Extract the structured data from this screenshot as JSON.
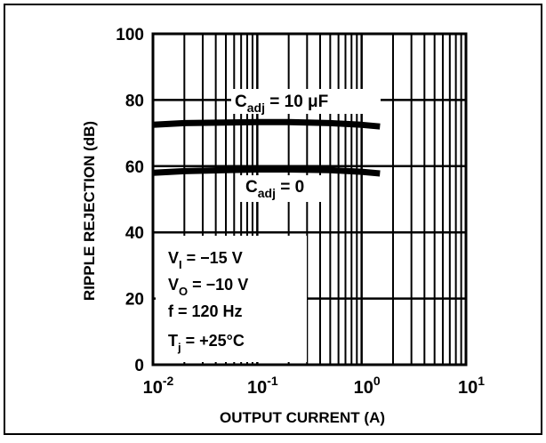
{
  "chart_data": {
    "type": "line",
    "x_scale": "log",
    "xlabel": "OUTPUT CURRENT (A)",
    "ylabel": "RIPPLE REJECTION (dB)",
    "xlim": [
      0.01,
      10
    ],
    "ylim": [
      0,
      100
    ],
    "grid": true,
    "x_ticks": [
      {
        "base": "10",
        "exp": "-2"
      },
      {
        "base": "10",
        "exp": "-1"
      },
      {
        "base": "10",
        "exp": "0"
      },
      {
        "base": "10",
        "exp": "1"
      }
    ],
    "y_ticks": [
      "0",
      "20",
      "40",
      "60",
      "80",
      "100"
    ],
    "series": [
      {
        "name": "Cadj = 10 µF",
        "label": {
          "main": "C",
          "sub": "adj",
          "rest": " = 10 μF"
        },
        "x": [
          0.01,
          0.02,
          0.05,
          0.1,
          0.2,
          0.5,
          1.0,
          1.5
        ],
        "y": [
          72.5,
          73.0,
          73.2,
          73.3,
          73.3,
          73.0,
          72.5,
          72.0
        ]
      },
      {
        "name": "Cadj = 0",
        "label": {
          "main": "C",
          "sub": "adj",
          "rest": " = 0"
        },
        "x": [
          0.01,
          0.02,
          0.05,
          0.1,
          0.2,
          0.5,
          1.0,
          1.5
        ],
        "y": [
          58.0,
          58.5,
          58.8,
          59.0,
          59.0,
          58.8,
          58.3,
          57.8
        ]
      }
    ],
    "conditions": [
      {
        "main": "V",
        "sub": "I",
        "rest": " = −15 V"
      },
      {
        "main": "V",
        "sub": "O",
        "rest": " = −10 V"
      },
      {
        "main": "f",
        "sub": "",
        "rest": "   = 120 Hz"
      },
      {
        "main": "T",
        "sub": "j",
        "rest": " =  +25°C"
      }
    ]
  }
}
